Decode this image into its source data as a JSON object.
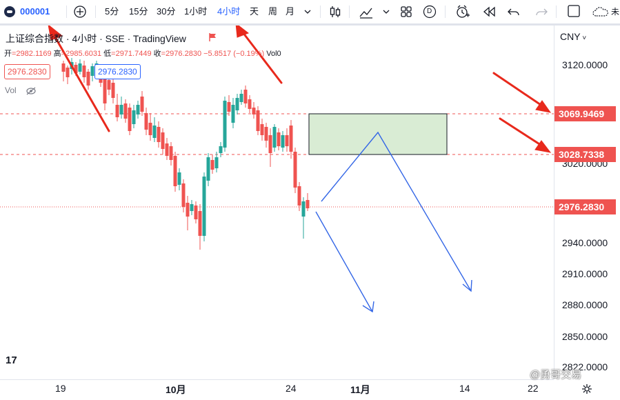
{
  "toolbar": {
    "symbol": "000001",
    "intervals": [
      {
        "label": "5分",
        "active": false
      },
      {
        "label": "15分",
        "active": false
      },
      {
        "label": "30分",
        "active": false
      },
      {
        "label": "1小时",
        "active": false
      },
      {
        "label": "4小时",
        "active": true
      },
      {
        "label": "天",
        "active": false
      },
      {
        "label": "周",
        "active": false
      },
      {
        "label": "月",
        "active": false
      }
    ],
    "d_label": "D",
    "cut_label": "未"
  },
  "legend": {
    "title": "上证综合指数 · 4小时 · SSE · TradingView",
    "open_label": "开",
    "open": "=2982.1169",
    "high_label": "高",
    "high": "=2985.6031",
    "low_label": "低",
    "low": "=2971.7449",
    "close_label": "收",
    "close": "=2976.2830",
    "change": "−5.8517 (−0.19%)",
    "vol": "Vol0",
    "badge_red": "2976.2830",
    "badge_blue": "2976.2830",
    "vol_label": "Vol"
  },
  "price_axis": {
    "currency": "CNY",
    "ticks": [
      "3120.0000",
      "3020.0000",
      "2940.0000",
      "2910.0000",
      "2880.0000",
      "2850.0000",
      "2822.0000"
    ],
    "tags": [
      "3069.9469",
      "3028.7338",
      "2976.2830"
    ]
  },
  "time_axis": {
    "labels": [
      "19",
      "10月",
      "24",
      "11月",
      "14",
      "22"
    ]
  },
  "watermark": "@勇哥交易",
  "tv_logo": "17",
  "colors": {
    "up": "#26a69a",
    "down": "#ef5350",
    "accent": "#2962ff",
    "annotation_arrow": "#e8291c",
    "zone_fill": "#d9ecd4"
  }
}
